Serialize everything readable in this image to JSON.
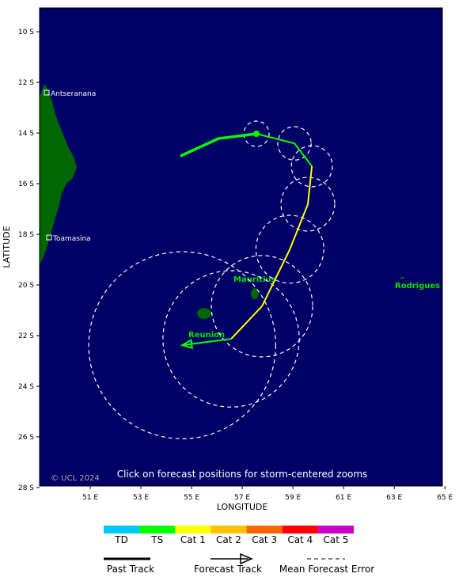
{
  "map": {
    "latlim": [
      9.06,
      27.94
    ],
    "lonlim": [
      49,
      64.9
    ],
    "latitude_ticks": [
      {
        "value": 10,
        "label": "10 S"
      },
      {
        "value": 12,
        "label": "12 S"
      },
      {
        "value": 14,
        "label": "14 S"
      },
      {
        "value": 16,
        "label": "16 S"
      },
      {
        "value": 18,
        "label": "18 S"
      },
      {
        "value": 20,
        "label": "20 S"
      },
      {
        "value": 22,
        "label": "22 S"
      },
      {
        "value": 24,
        "label": "24 S"
      },
      {
        "value": 26,
        "label": "26 S"
      },
      {
        "value": 28,
        "label": "28 S"
      }
    ],
    "longitude_ticks": [
      {
        "value": 51,
        "label": "51 E"
      },
      {
        "value": 53,
        "label": "53 E"
      },
      {
        "value": 55,
        "label": "55 E"
      },
      {
        "value": 57,
        "label": "57 E"
      },
      {
        "value": 59,
        "label": "59 E"
      },
      {
        "value": 61,
        "label": "61 E"
      },
      {
        "value": 63,
        "label": "63 E"
      },
      {
        "value": 65,
        "label": "65 E"
      }
    ],
    "x_axis_label": "LONGITUDE",
    "y_axis_label": "LATITUDE",
    "places": [
      "Antseranana",
      "Toamasina"
    ],
    "islands": [
      "Mauritius",
      "Reunion",
      "Rodrigues"
    ],
    "copyright": "© UCL 2024",
    "note": "Click on forecast positions for storm-centered zooms",
    "past_track": {
      "color": "#00ff00",
      "lon": [
        54.56,
        56.06,
        57.56
      ],
      "lat": [
        14.91,
        14.22,
        14.03
      ]
    },
    "forecast_track": {
      "lon": [
        57.56,
        59.06,
        59.75,
        59.59,
        58.88,
        57.78,
        56.56,
        54.63
      ],
      "lat": [
        14.03,
        14.41,
        15.31,
        16.81,
        18.59,
        20.84,
        22.13,
        22.38
      ],
      "colors": [
        "#00ff00",
        "#00ff00",
        "#ffff00",
        "#ffff00",
        "#ffff00",
        "#ffff00",
        "#00ff00",
        "#00ff00"
      ],
      "error_radius": [
        0.5,
        0.66,
        0.81,
        1.06,
        1.34,
        2.0,
        2.69,
        3.69
      ]
    }
  },
  "legend": {
    "categories": [
      {
        "label": "TD",
        "color": "#00c8ff"
      },
      {
        "label": "TS",
        "color": "#00ff00"
      },
      {
        "label": "Cat 1",
        "color": "#ffff00"
      },
      {
        "label": "Cat 2",
        "color": "#ffc000"
      },
      {
        "label": "Cat 3",
        "color": "#ff6400"
      },
      {
        "label": "Cat 4",
        "color": "#ff0000"
      },
      {
        "label": "Cat 5",
        "color": "#c800c8"
      }
    ],
    "past_track": "Past Track",
    "forecast_track": "Forecast Track",
    "error": "Mean Forecast Error"
  }
}
